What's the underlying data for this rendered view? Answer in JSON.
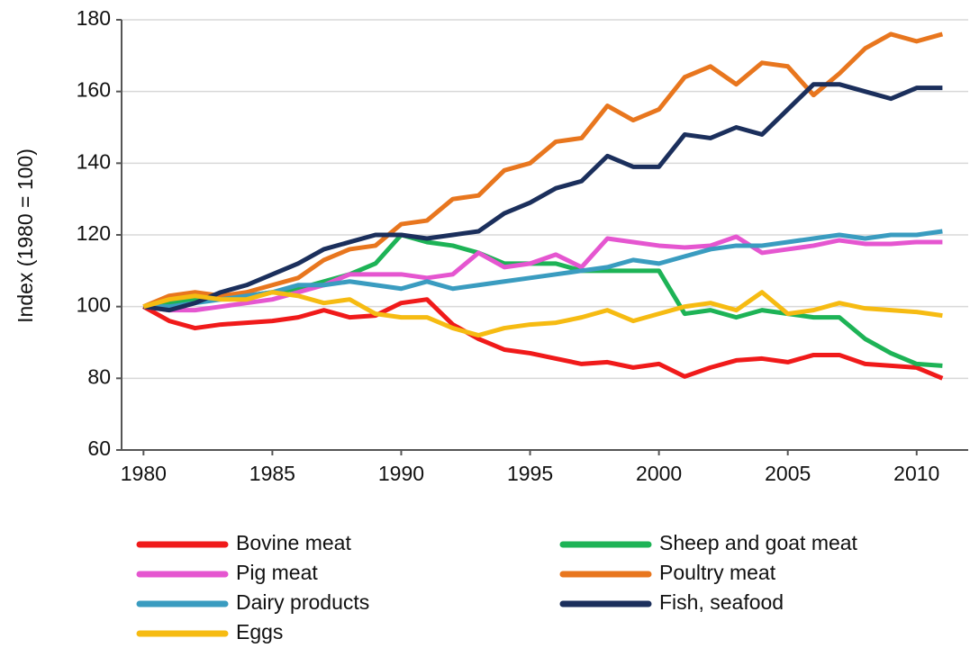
{
  "chart_data": {
    "type": "line",
    "y_label": "Index (1980 = 100)",
    "x": [
      1980,
      1981,
      1982,
      1983,
      1984,
      1985,
      1986,
      1987,
      1988,
      1989,
      1990,
      1991,
      1992,
      1993,
      1994,
      1995,
      1996,
      1997,
      1998,
      1999,
      2000,
      2001,
      2002,
      2003,
      2004,
      2005,
      2006,
      2007,
      2008,
      2009,
      2010,
      2011
    ],
    "series": [
      {
        "name": "Bovine meat",
        "color": "#f01a1a",
        "values": [
          100,
          96,
          94,
          95,
          95.5,
          96,
          97,
          99,
          97,
          97.5,
          101,
          102,
          95,
          91,
          88,
          87,
          85.5,
          84,
          84.5,
          83,
          84,
          80.5,
          83,
          85,
          85.5,
          84.5,
          86.5,
          86.5,
          84,
          83.5,
          83,
          80
        ]
      },
      {
        "name": "Sheep and goat meat",
        "color": "#1db356",
        "values": [
          100,
          101,
          102,
          103,
          103,
          104,
          105,
          107,
          109,
          112,
          120,
          118,
          117,
          115,
          112,
          112,
          112,
          110,
          110,
          110,
          110,
          98,
          99,
          97,
          99,
          98,
          97,
          97,
          91,
          87,
          84,
          83.5
        ]
      },
      {
        "name": "Pig meat",
        "color": "#e556d0",
        "values": [
          100,
          99,
          99,
          100,
          101,
          102,
          104,
          106,
          109,
          109,
          109,
          108,
          109,
          115,
          111,
          112,
          114.5,
          111,
          119,
          118,
          117,
          116.5,
          117,
          119.5,
          115,
          116,
          117,
          118.5,
          117.5,
          117.5,
          118,
          118
        ]
      },
      {
        "name": "Poultry meat",
        "color": "#e8761e",
        "values": [
          100,
          103,
          104,
          103,
          104,
          106,
          108,
          113,
          116,
          117,
          123,
          124,
          130,
          131,
          138,
          140,
          146,
          147,
          156,
          152,
          155,
          164,
          167,
          162,
          168,
          167,
          159,
          165,
          172,
          176,
          174,
          176
        ]
      },
      {
        "name": "Dairy products",
        "color": "#3a9cc0",
        "values": [
          100,
          100,
          101,
          102,
          103,
          104,
          106,
          106,
          107,
          106,
          105,
          107,
          105,
          106,
          107,
          108,
          109,
          110,
          111,
          113,
          112,
          114,
          116,
          117,
          117,
          118,
          119,
          120,
          119,
          120,
          120,
          121
        ]
      },
      {
        "name": "Fish, seafood",
        "color": "#1b2f5c",
        "values": [
          100,
          99,
          101,
          104,
          106,
          109,
          112,
          116,
          118,
          120,
          120,
          119,
          120,
          121,
          126,
          129,
          133,
          135,
          142,
          139,
          139,
          148,
          147,
          150,
          148,
          155,
          162,
          162,
          160,
          158,
          161,
          161
        ]
      },
      {
        "name": "Eggs",
        "color": "#f6bb12",
        "values": [
          100,
          102,
          103,
          102,
          102,
          104,
          103,
          101,
          102,
          98,
          97,
          97,
          94,
          92,
          94,
          95,
          95.5,
          97,
          99,
          96,
          98,
          100,
          101,
          99,
          104,
          98,
          99,
          101,
          99.5,
          99,
          98.5,
          97.5
        ]
      }
    ],
    "xlim": [
      1979.15,
      2012
    ],
    "xticks": [
      1980,
      1985,
      1990,
      1995,
      2000,
      2005,
      2010
    ],
    "ylim": [
      60,
      180
    ],
    "yticks": [
      60,
      80,
      100,
      120,
      140,
      160,
      180
    ],
    "grid": true
  }
}
